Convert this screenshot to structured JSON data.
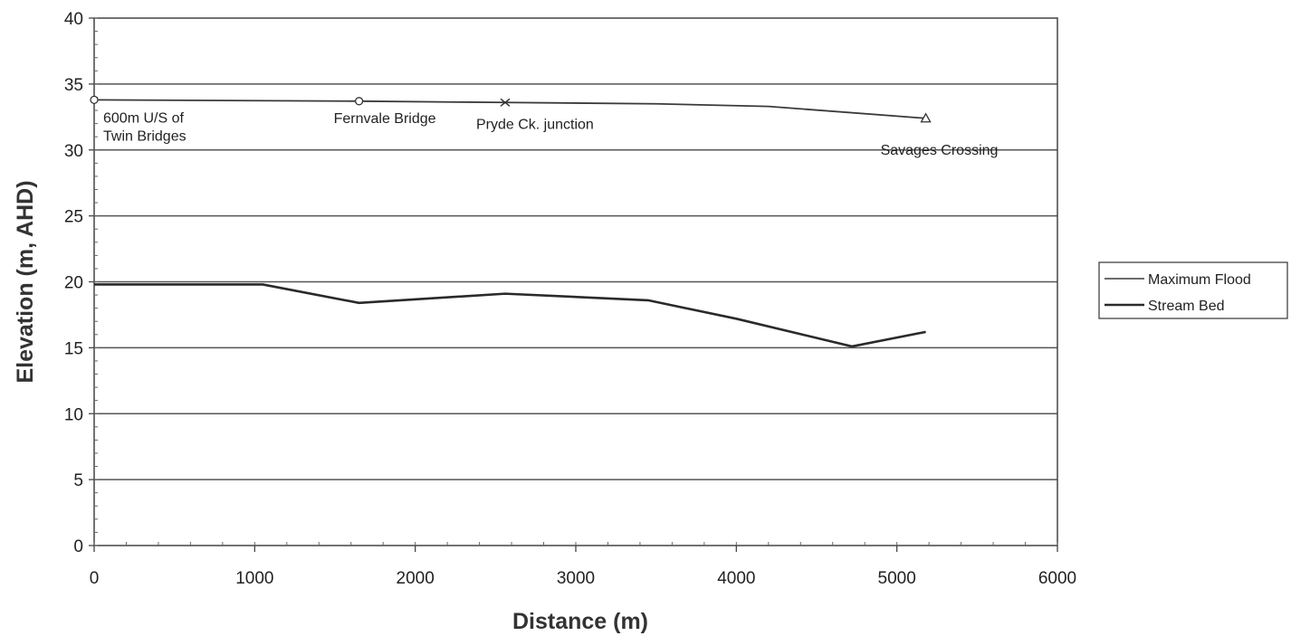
{
  "chart_data": {
    "type": "line",
    "xlabel": "Distance (m)",
    "ylabel": "Elevation (m, AHD)",
    "xlim": [
      0,
      6000
    ],
    "ylim": [
      0,
      40
    ],
    "x_ticks": [
      "0",
      "1000",
      "2000",
      "3000",
      "4000",
      "5000",
      "6000"
    ],
    "y_ticks": [
      "0",
      "5",
      "10",
      "15",
      "20",
      "25",
      "30",
      "35",
      "40"
    ],
    "grid": "horizontal",
    "legend_position": "right",
    "series": [
      {
        "name": "Maximum Flood",
        "color": "#3a3a3a",
        "x": [
          0,
          1650,
          2560,
          3500,
          4200,
          5180
        ],
        "y": [
          33.8,
          33.7,
          33.6,
          33.5,
          33.3,
          32.4
        ]
      },
      {
        "name": "Stream Bed",
        "color": "#2a2a2a",
        "x": [
          0,
          1050,
          1650,
          2560,
          3450,
          4000,
          4720,
          5180
        ],
        "y": [
          19.8,
          19.8,
          18.4,
          19.1,
          18.6,
          17.2,
          15.1,
          16.2
        ]
      }
    ],
    "annotations": [
      {
        "lines": [
          "600m U/S of",
          "Twin Bridges"
        ],
        "x": 0,
        "y": 33.8,
        "marker": "circle"
      },
      {
        "lines": [
          "Fernvale Bridge"
        ],
        "x": 1650,
        "y": 33.7,
        "marker": "circle"
      },
      {
        "lines": [
          "Pryde Ck. junction"
        ],
        "x": 2560,
        "y": 33.6,
        "marker": "x"
      },
      {
        "lines": [
          "Savages Crossing"
        ],
        "x": 5180,
        "y": 32.4,
        "marker": "triangle"
      }
    ]
  }
}
